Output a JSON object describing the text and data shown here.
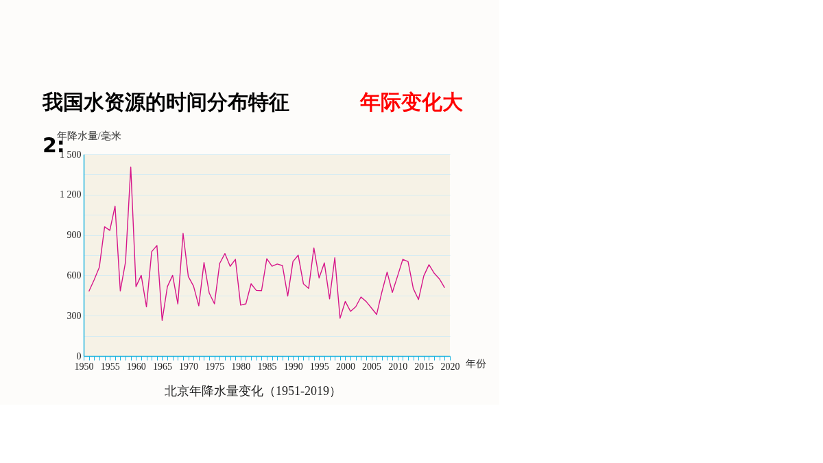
{
  "chart_data": {
    "type": "line",
    "title": "我国水资源的时间分布特征",
    "subtitle": "年际变化大",
    "xlabel": "年份",
    "ylabel": "年降水量/毫米",
    "annotations": [
      "2:",
      "北京年降水量变化（1951-2019）"
    ],
    "x": [
      1951,
      1952,
      1953,
      1954,
      1955,
      1956,
      1957,
      1958,
      1959,
      1960,
      1961,
      1962,
      1963,
      1964,
      1965,
      1966,
      1967,
      1968,
      1969,
      1970,
      1971,
      1972,
      1973,
      1974,
      1975,
      1976,
      1977,
      1978,
      1979,
      1980,
      1981,
      1982,
      1983,
      1984,
      1985,
      1986,
      1987,
      1988,
      1989,
      1990,
      1991,
      1992,
      1993,
      1994,
      1995,
      1996,
      1997,
      1998,
      1999,
      2000,
      2001,
      2002,
      2003,
      2004,
      2005,
      2006,
      2007,
      2008,
      2009,
      2010,
      2011,
      2012,
      2013,
      2014,
      2015,
      2016,
      2017,
      2018,
      2019
    ],
    "series": [
      {
        "color": "#d6168a",
        "values": [
          481,
          566,
          661,
          961,
          934,
          1115,
          484,
          699,
          1406,
          516,
          600,
          366,
          776,
          822,
          264,
          516,
          600,
          387,
          912,
          591,
          520,
          373,
          695,
          468,
          388,
          689,
          762,
          667,
          719,
          378,
          388,
          537,
          488,
          486,
          724,
          668,
          684,
          672,
          446,
          702,
          750,
          537,
          503,
          804,
          580,
          693,
          425,
          731,
          281,
          406,
          332,
          366,
          439,
          405,
          357,
          309,
          476,
          624,
          473,
          595,
          719,
          702,
          502,
          420,
          595,
          679,
          616,
          573,
          507
        ]
      }
    ],
    "xlim": [
      1950,
      2020
    ],
    "xticks": [
      1950,
      {
        "value": 1951,
        "label": null
      },
      {
        "value": 1952,
        "label": null
      },
      {
        "value": 1953,
        "label": null
      },
      {
        "value": 1954,
        "label": null
      },
      1955,
      {
        "value": 1956,
        "label": null
      },
      {
        "value": 1957,
        "label": null
      },
      {
        "value": 1958,
        "label": null
      },
      {
        "value": 1959,
        "label": null
      },
      1960,
      {
        "value": 1961,
        "label": null
      },
      {
        "value": 1962,
        "label": null
      },
      {
        "value": 1963,
        "label": null
      },
      {
        "value": 1964,
        "label": null
      },
      1965,
      {
        "value": 1966,
        "label": null
      },
      {
        "value": 1967,
        "label": null
      },
      {
        "value": 1968,
        "label": null
      },
      {
        "value": 1969,
        "label": null
      },
      1970,
      {
        "value": 1971,
        "label": null
      },
      {
        "value": 1972,
        "label": null
      },
      {
        "value": 1973,
        "label": null
      },
      {
        "value": 1974,
        "label": null
      },
      1975,
      {
        "value": 1976,
        "label": null
      },
      {
        "value": 1977,
        "label": null
      },
      {
        "value": 1978,
        "label": null
      },
      {
        "value": 1979,
        "label": null
      },
      1980,
      {
        "value": 1981,
        "label": null
      },
      {
        "value": 1982,
        "label": null
      },
      {
        "value": 1983,
        "label": null
      },
      {
        "value": 1984,
        "label": null
      },
      1985,
      {
        "value": 1986,
        "label": null
      },
      {
        "value": 1987,
        "label": null
      },
      {
        "value": 1988,
        "label": null
      },
      {
        "value": 1989,
        "label": null
      },
      1990,
      {
        "value": 1991,
        "label": null
      },
      {
        "value": 1992,
        "label": null
      },
      {
        "value": 1993,
        "label": null
      },
      {
        "value": 1994,
        "label": null
      },
      1995,
      {
        "value": 1996,
        "label": null
      },
      {
        "value": 1997,
        "label": null
      },
      {
        "value": 1998,
        "label": null
      },
      {
        "value": 1999,
        "label": null
      },
      2000,
      {
        "value": 2001,
        "label": null
      },
      {
        "value": 2002,
        "label": null
      },
      {
        "value": 2003,
        "label": null
      },
      {
        "value": 2004,
        "label": null
      },
      2005,
      {
        "value": 2006,
        "label": null
      },
      {
        "value": 2007,
        "label": null
      },
      {
        "value": 2008,
        "label": null
      },
      {
        "value": 2009,
        "label": null
      },
      2010,
      {
        "value": 2011,
        "label": null
      },
      {
        "value": 2012,
        "label": null
      },
      {
        "value": 2013,
        "label": null
      },
      {
        "value": 2014,
        "label": null
      },
      2015,
      {
        "value": 2016,
        "label": null
      },
      {
        "value": 2017,
        "label": null
      },
      {
        "value": 2018,
        "label": null
      },
      {
        "value": 2019,
        "label": null
      },
      2020
    ],
    "ylim": [
      0,
      1500
    ],
    "yticks": [
      0,
      {
        "value": 150,
        "label": null
      },
      300,
      {
        "value": 450,
        "label": null
      },
      600,
      {
        "value": 750,
        "label": null
      },
      900,
      {
        "value": 1050,
        "label": null
      },
      {
        "value": 1200,
        "label": "1 200"
      },
      {
        "value": 1350,
        "label": null
      },
      {
        "value": 1500,
        "label": "1 500"
      }
    ],
    "grid": "y",
    "marker": "none",
    "line_style": "solid"
  }
}
